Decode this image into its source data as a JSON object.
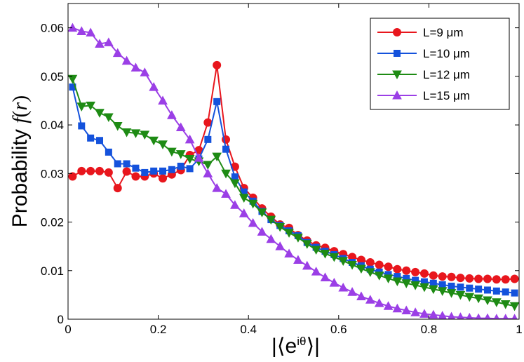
{
  "chart_data": {
    "type": "line",
    "title": "",
    "xlabel": "|⟨e^{iθ}⟩|",
    "ylabel": "Probability f(r)",
    "xlim": [
      0,
      1
    ],
    "ylim": [
      0,
      0.065
    ],
    "xticks": [
      "0",
      "0.2",
      "0.4",
      "0.6",
      "0.8",
      "1"
    ],
    "yticks": [
      "0",
      "0.01",
      "0.02",
      "0.03",
      "0.04",
      "0.05",
      "0.06"
    ],
    "grid": false,
    "legend_position": "top-right",
    "x": [
      0.01,
      0.03,
      0.05,
      0.07,
      0.09,
      0.11,
      0.13,
      0.15,
      0.17,
      0.19,
      0.21,
      0.23,
      0.25,
      0.27,
      0.29,
      0.31,
      0.33,
      0.35,
      0.37,
      0.39,
      0.41,
      0.43,
      0.45,
      0.47,
      0.49,
      0.51,
      0.53,
      0.55,
      0.57,
      0.59,
      0.61,
      0.63,
      0.65,
      0.67,
      0.69,
      0.71,
      0.73,
      0.75,
      0.77,
      0.79,
      0.81,
      0.83,
      0.85,
      0.87,
      0.89,
      0.91,
      0.93,
      0.95,
      0.97,
      0.99
    ],
    "series": [
      {
        "name": "L=9 μm",
        "color": "#e8161d",
        "marker": "circle",
        "values": [
          0.0294,
          0.0305,
          0.0305,
          0.0305,
          0.0302,
          0.027,
          0.0304,
          0.0294,
          0.0294,
          0.03,
          0.029,
          0.0298,
          0.0307,
          0.0338,
          0.0348,
          0.0405,
          0.0523,
          0.037,
          0.0314,
          0.027,
          0.025,
          0.0228,
          0.0211,
          0.0195,
          0.0188,
          0.0173,
          0.0162,
          0.0152,
          0.0147,
          0.014,
          0.0134,
          0.0128,
          0.0122,
          0.0117,
          0.0112,
          0.0108,
          0.0103,
          0.01,
          0.0097,
          0.0094,
          0.009,
          0.0088,
          0.0087,
          0.0085,
          0.0084,
          0.0083,
          0.0083,
          0.0082,
          0.0082,
          0.0083
        ]
      },
      {
        "name": "L=10 μm",
        "color": "#1452dc",
        "marker": "square",
        "values": [
          0.0478,
          0.0398,
          0.0373,
          0.0368,
          0.0344,
          0.032,
          0.032,
          0.0311,
          0.0302,
          0.0305,
          0.0305,
          0.0308,
          0.0315,
          0.031,
          0.033,
          0.037,
          0.0448,
          0.035,
          0.0293,
          0.0262,
          0.0243,
          0.0222,
          0.0205,
          0.0193,
          0.0182,
          0.0172,
          0.0158,
          0.0148,
          0.014,
          0.0133,
          0.0125,
          0.0117,
          0.011,
          0.0103,
          0.0097,
          0.0092,
          0.0088,
          0.0084,
          0.008,
          0.0077,
          0.0074,
          0.0071,
          0.0068,
          0.0066,
          0.0064,
          0.0062,
          0.006,
          0.0058,
          0.0056,
          0.0054
        ]
      },
      {
        "name": "L=12 μm",
        "color": "#1e8b14",
        "marker": "triangle-down",
        "values": [
          0.0495,
          0.0438,
          0.044,
          0.0425,
          0.0416,
          0.0398,
          0.0385,
          0.0383,
          0.038,
          0.0368,
          0.036,
          0.0345,
          0.034,
          0.033,
          0.0325,
          0.0318,
          0.0335,
          0.03,
          0.028,
          0.025,
          0.0238,
          0.022,
          0.0205,
          0.019,
          0.0178,
          0.0168,
          0.0155,
          0.0143,
          0.0135,
          0.0128,
          0.012,
          0.0112,
          0.0104,
          0.0097,
          0.009,
          0.0084,
          0.0078,
          0.0074,
          0.007,
          0.0066,
          0.0062,
          0.0058,
          0.0054,
          0.005,
          0.0046,
          0.0043,
          0.0039,
          0.0035,
          0.0031,
          0.0027
        ]
      },
      {
        "name": "L=15 μm",
        "color": "#9b3fe6",
        "marker": "triangle-up",
        "values": [
          0.06,
          0.0593,
          0.059,
          0.0567,
          0.057,
          0.0548,
          0.0532,
          0.0518,
          0.0508,
          0.0478,
          0.045,
          0.042,
          0.0395,
          0.037,
          0.0332,
          0.03,
          0.027,
          0.0258,
          0.0235,
          0.0218,
          0.0198,
          0.018,
          0.0165,
          0.015,
          0.0135,
          0.0122,
          0.011,
          0.0098,
          0.0086,
          0.0075,
          0.0065,
          0.0056,
          0.0047,
          0.004,
          0.0033,
          0.0027,
          0.0022,
          0.0018,
          0.0014,
          0.0011,
          0.0009,
          0.0007,
          0.0005,
          0.0004,
          0.0003,
          0.0002,
          0.0002,
          0.0001,
          0.0001,
          0.0001
        ]
      }
    ]
  }
}
